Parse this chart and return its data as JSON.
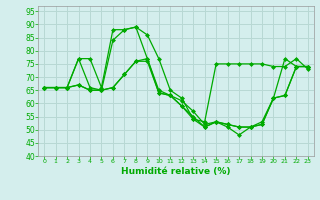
{
  "title": "",
  "xlabel": "Humidité relative (%)",
  "ylabel": "",
  "bg_color": "#d4eeed",
  "grid_color": "#b8d8d4",
  "line_color": "#00aa00",
  "marker": "D",
  "markersize": 2.0,
  "linewidth": 0.9,
  "xlim": [
    -0.5,
    23.5
  ],
  "ylim": [
    40,
    97
  ],
  "yticks": [
    40,
    45,
    50,
    55,
    60,
    65,
    70,
    75,
    80,
    85,
    90,
    95
  ],
  "xticks": [
    0,
    1,
    2,
    3,
    4,
    5,
    6,
    7,
    8,
    9,
    10,
    11,
    12,
    13,
    14,
    15,
    16,
    17,
    18,
    19,
    20,
    21,
    22,
    23
  ],
  "series": [
    [
      66,
      66,
      66,
      77,
      77,
      66,
      88,
      88,
      89,
      86,
      77,
      65,
      62,
      54,
      53,
      75,
      75,
      75,
      75,
      75,
      74,
      74,
      77,
      73
    ],
    [
      66,
      66,
      66,
      77,
      66,
      65,
      84,
      88,
      89,
      77,
      65,
      63,
      59,
      54,
      51,
      53,
      51,
      48,
      51,
      53,
      62,
      77,
      74,
      74
    ],
    [
      66,
      66,
      66,
      67,
      65,
      65,
      66,
      71,
      76,
      77,
      64,
      63,
      59,
      55,
      51,
      53,
      52,
      51,
      51,
      52,
      62,
      63,
      74,
      74
    ],
    [
      66,
      66,
      66,
      67,
      65,
      65,
      66,
      71,
      76,
      76,
      64,
      63,
      61,
      57,
      52,
      53,
      52,
      51,
      51,
      52,
      62,
      63,
      74,
      74
    ]
  ]
}
